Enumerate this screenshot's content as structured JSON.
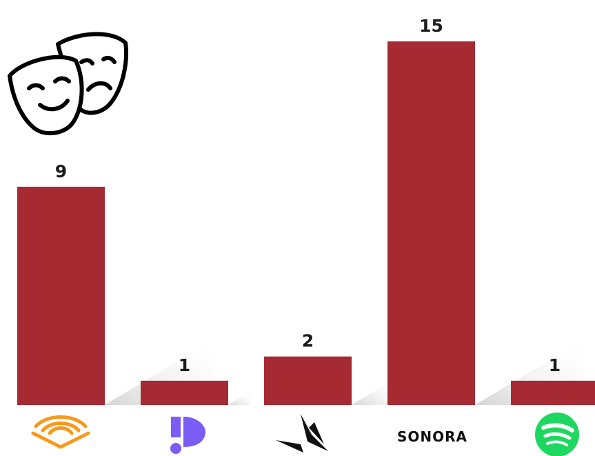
{
  "chart_data": {
    "type": "bar",
    "categories": [
      "Audible",
      "Podimo",
      "Storytel",
      "SONORA",
      "Spotify"
    ],
    "values": [
      9,
      1,
      2,
      15,
      1
    ],
    "data_labels": [
      "9",
      "1",
      "2",
      "15",
      "1"
    ],
    "bar_color": "#A52A32",
    "ylim": [
      0,
      15
    ],
    "grid": false,
    "title": "",
    "xlabel": "",
    "ylabel": ""
  },
  "logos": {
    "audible": {
      "icon": "audible-logo-icon",
      "color": "#F7991C"
    },
    "podimo": {
      "icon": "podimo-logo-icon",
      "color": "#7B5CF5"
    },
    "storytel": {
      "icon": "storytel-logo-icon",
      "color": "#111111"
    },
    "sonora": {
      "text": "SONORA",
      "color": "#111111"
    },
    "spotify": {
      "icon": "spotify-logo-icon",
      "color": "#1ED760"
    }
  },
  "decoration": {
    "icon": "theater-masks-icon"
  }
}
